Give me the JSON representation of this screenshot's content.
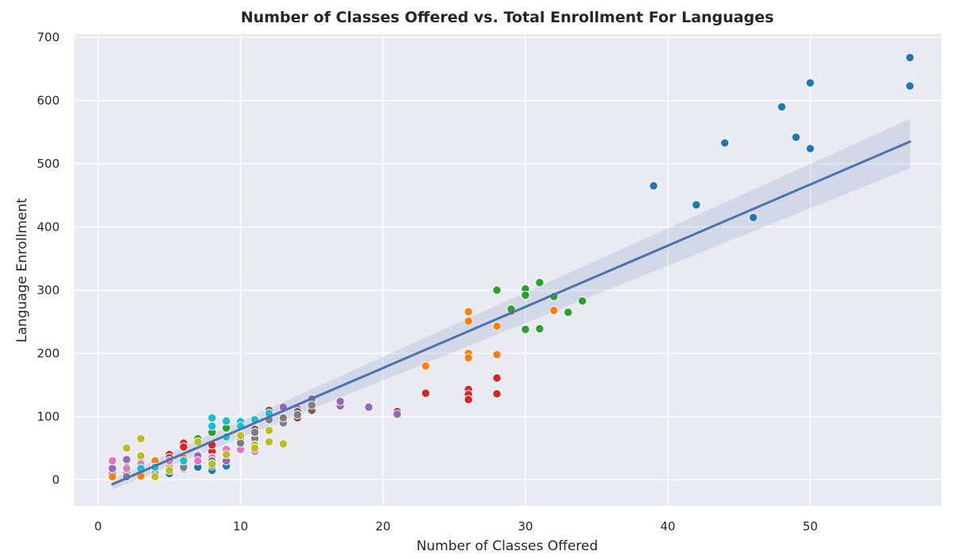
{
  "chart_data": {
    "type": "scatter",
    "title": "Number of Classes Offered vs. Total Enrollment For Languages",
    "xlabel": "Number of Classes Offered",
    "ylabel": "Language Enrollment",
    "xlim": [
      -1.7,
      59.2
    ],
    "ylim": [
      -41,
      705
    ],
    "xticks": [
      0,
      10,
      20,
      30,
      40,
      50
    ],
    "yticks": [
      0,
      100,
      200,
      300,
      400,
      500,
      600,
      700
    ],
    "grid": true,
    "background": "#eaeaf2",
    "regression": {
      "x_range": [
        1,
        57
      ],
      "y_at_min": -7,
      "y_at_max": 535,
      "ci_at_min": [
        -15,
        1
      ],
      "ci_at_max": [
        493,
        571
      ],
      "color": "#4c72b0"
    },
    "series": [
      {
        "name": "blue",
        "color": "#1f77b4",
        "points": [
          [
            1,
            10
          ],
          [
            2,
            15
          ],
          [
            3,
            12
          ],
          [
            4,
            8
          ],
          [
            5,
            10
          ],
          [
            6,
            18
          ],
          [
            7,
            20
          ],
          [
            8,
            15
          ],
          [
            8,
            22
          ],
          [
            9,
            22
          ],
          [
            39,
            465
          ],
          [
            42,
            435
          ],
          [
            44,
            533
          ],
          [
            46,
            415
          ],
          [
            48,
            590
          ],
          [
            49,
            542
          ],
          [
            50,
            628
          ],
          [
            50,
            524
          ],
          [
            57,
            668
          ],
          [
            57,
            623
          ]
        ]
      },
      {
        "name": "orange",
        "color": "#ff7f0e",
        "points": [
          [
            1,
            5
          ],
          [
            2,
            8
          ],
          [
            3,
            6
          ],
          [
            4,
            30
          ],
          [
            5,
            20
          ],
          [
            6,
            35
          ],
          [
            7,
            40
          ],
          [
            23,
            180
          ],
          [
            26,
            266
          ],
          [
            26,
            251
          ],
          [
            26,
            200
          ],
          [
            26,
            193
          ],
          [
            28,
            243
          ],
          [
            28,
            198
          ],
          [
            29,
            266
          ],
          [
            32,
            268
          ]
        ]
      },
      {
        "name": "green",
        "color": "#2ca02c",
        "points": [
          [
            2,
            12
          ],
          [
            3,
            35
          ],
          [
            5,
            15
          ],
          [
            7,
            65
          ],
          [
            8,
            75
          ],
          [
            9,
            82
          ],
          [
            28,
            300
          ],
          [
            29,
            270
          ],
          [
            30,
            302
          ],
          [
            30,
            292
          ],
          [
            30,
            238
          ],
          [
            31,
            312
          ],
          [
            31,
            239
          ],
          [
            32,
            290
          ],
          [
            33,
            265
          ],
          [
            34,
            283
          ]
        ]
      },
      {
        "name": "red",
        "color": "#d62728",
        "points": [
          [
            5,
            40
          ],
          [
            6,
            58
          ],
          [
            6,
            52
          ],
          [
            7,
            35
          ],
          [
            8,
            45
          ],
          [
            8,
            55
          ],
          [
            21,
            108
          ],
          [
            23,
            137
          ],
          [
            26,
            143
          ],
          [
            26,
            135
          ],
          [
            26,
            127
          ],
          [
            28,
            161
          ],
          [
            28,
            136
          ]
        ]
      },
      {
        "name": "purple",
        "color": "#9467bd",
        "points": [
          [
            1,
            18
          ],
          [
            2,
            32
          ],
          [
            3,
            25
          ],
          [
            7,
            38
          ],
          [
            9,
            30
          ],
          [
            13,
            115
          ],
          [
            14,
            112
          ],
          [
            15,
            128
          ],
          [
            17,
            117
          ],
          [
            17,
            124
          ],
          [
            19,
            115
          ],
          [
            21,
            104
          ]
        ]
      },
      {
        "name": "brown",
        "color": "#8c564b",
        "points": [
          [
            2,
            20
          ],
          [
            5,
            35
          ],
          [
            10,
            62
          ],
          [
            11,
            80
          ],
          [
            12,
            100
          ],
          [
            12,
            110
          ],
          [
            14,
            98
          ],
          [
            14,
            108
          ],
          [
            15,
            110
          ]
        ]
      },
      {
        "name": "pink",
        "color": "#e377c2",
        "points": [
          [
            1,
            30
          ],
          [
            2,
            18
          ],
          [
            3,
            25
          ],
          [
            4,
            12
          ],
          [
            5,
            30
          ],
          [
            6,
            25
          ],
          [
            7,
            30
          ],
          [
            8,
            35
          ],
          [
            8,
            28
          ],
          [
            9,
            45
          ],
          [
            9,
            48
          ],
          [
            10,
            48
          ],
          [
            11,
            45
          ]
        ]
      },
      {
        "name": "gray",
        "color": "#7f7f7f",
        "points": [
          [
            2,
            5
          ],
          [
            4,
            10
          ],
          [
            6,
            20
          ],
          [
            8,
            30
          ],
          [
            10,
            58
          ],
          [
            11,
            65
          ],
          [
            11,
            75
          ],
          [
            12,
            95
          ],
          [
            13,
            90
          ],
          [
            13,
            98
          ],
          [
            14,
            103
          ],
          [
            15,
            118
          ]
        ]
      },
      {
        "name": "olive",
        "color": "#bcbd22",
        "points": [
          [
            2,
            50
          ],
          [
            3,
            65
          ],
          [
            3,
            38
          ],
          [
            4,
            5
          ],
          [
            5,
            15
          ],
          [
            7,
            60
          ],
          [
            8,
            25
          ],
          [
            9,
            40
          ],
          [
            10,
            70
          ],
          [
            11,
            55
          ],
          [
            11,
            50
          ],
          [
            12,
            60
          ],
          [
            12,
            78
          ],
          [
            13,
            57
          ]
        ]
      },
      {
        "name": "cyan",
        "color": "#17becf",
        "points": [
          [
            3,
            18
          ],
          [
            4,
            20
          ],
          [
            6,
            30
          ],
          [
            8,
            98
          ],
          [
            8,
            85
          ],
          [
            9,
            93
          ],
          [
            9,
            68
          ],
          [
            10,
            92
          ],
          [
            10,
            85
          ],
          [
            11,
            95
          ],
          [
            12,
            105
          ]
        ]
      }
    ]
  }
}
